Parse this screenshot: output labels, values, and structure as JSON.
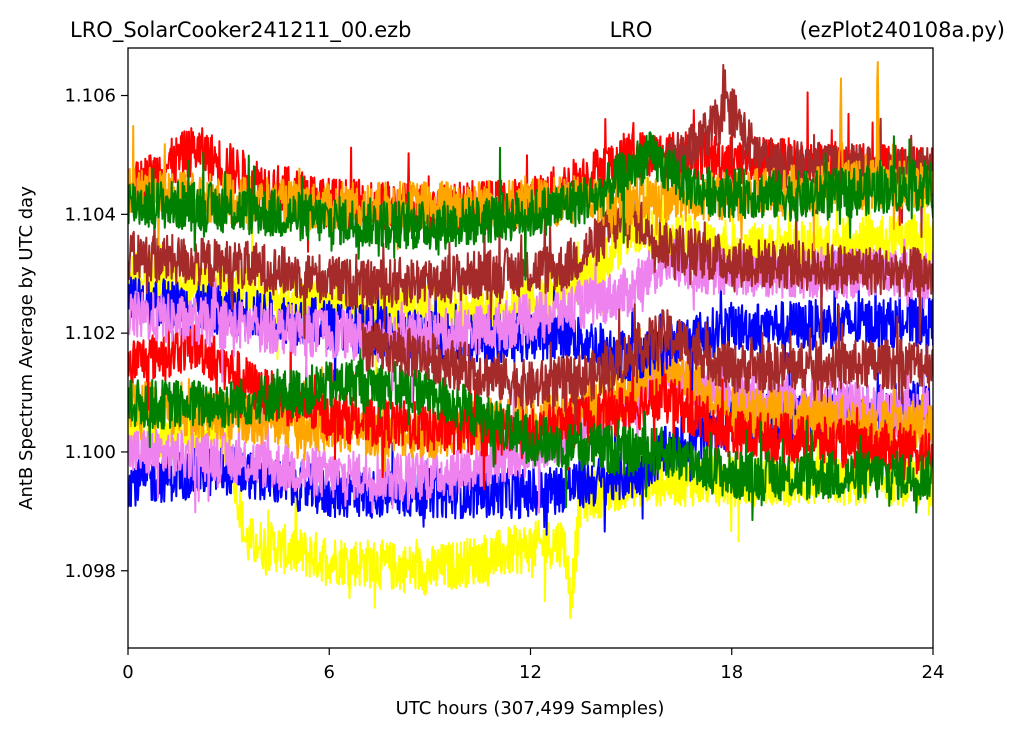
{
  "header": {
    "left": "LRO_SolarCooker241211_00.ezb",
    "center": "LRO",
    "right": "(ezPlot240108a.py)"
  },
  "chart_data": {
    "type": "line",
    "xlabel": "UTC hours  (307,499 Samples)",
    "ylabel": "AntB Spectrum Average by UTC day",
    "xlim": [
      0,
      24
    ],
    "ylim": [
      1.0967,
      1.1068
    ],
    "x_ticks": [
      {
        "value": 0,
        "label": "0"
      },
      {
        "value": 6,
        "label": "6"
      },
      {
        "value": 12,
        "label": "12"
      },
      {
        "value": 18,
        "label": "18"
      },
      {
        "value": 24,
        "label": "24"
      }
    ],
    "y_ticks": [
      {
        "value": 1.098,
        "label": "1.098"
      },
      {
        "value": 1.1,
        "label": "1.100"
      },
      {
        "value": 1.102,
        "label": "1.102"
      },
      {
        "value": 1.104,
        "label": "1.104"
      },
      {
        "value": 1.106,
        "label": "1.106"
      }
    ],
    "grid": false,
    "series": [
      {
        "color": "#ffff00",
        "x": [
          0,
          3,
          3.5,
          6,
          9,
          12,
          13,
          13.2,
          13.5,
          15,
          18,
          24
        ],
        "y": [
          1.1004,
          1.1002,
          1.0985,
          1.0982,
          1.098,
          1.0984,
          1.0985,
          1.0975,
          1.0992,
          1.0995,
          1.0995,
          1.0995
        ]
      },
      {
        "color": "#0000ff",
        "x": [
          0,
          3,
          6,
          9,
          12,
          15,
          16,
          18,
          24
        ],
        "y": [
          1.0995,
          1.0997,
          1.0993,
          1.0993,
          1.0993,
          1.0996,
          1.1,
          1.1005,
          1.1008
        ]
      },
      {
        "color": "#ee82ee",
        "x": [
          0,
          3,
          6,
          9,
          12,
          15,
          16,
          18,
          24
        ],
        "y": [
          1.1,
          1.0999,
          1.0996,
          1.0996,
          1.1,
          1.1008,
          1.1013,
          1.101,
          1.1006
        ]
      },
      {
        "color": "#ffa500",
        "x": [
          0,
          3,
          6,
          9,
          12,
          15,
          16,
          18,
          24
        ],
        "y": [
          1.1008,
          1.1006,
          1.1004,
          1.1003,
          1.1006,
          1.101,
          1.1015,
          1.1007,
          1.1004
        ]
      },
      {
        "color": "#ff0000",
        "x": [
          0,
          2,
          4,
          6,
          9,
          12,
          16,
          18,
          24
        ],
        "y": [
          1.1015,
          1.1018,
          1.101,
          1.1006,
          1.1004,
          1.1003,
          1.1009,
          1.1003,
          1.1
        ]
      },
      {
        "color": "#008000",
        "x": [
          0,
          3,
          7,
          9,
          12,
          15,
          16,
          18,
          24
        ],
        "y": [
          1.1008,
          1.1008,
          1.1012,
          1.101,
          1.1002,
          1.1,
          1.1,
          1.0996,
          1.0996
        ]
      },
      {
        "color": "#ffff00",
        "x": [
          0,
          3,
          6,
          9,
          12,
          14,
          15,
          18,
          24
        ],
        "y": [
          1.103,
          1.1028,
          1.1025,
          1.1024,
          1.1025,
          1.103,
          1.1038,
          1.1034,
          1.1036
        ]
      },
      {
        "color": "#0000ff",
        "x": [
          0,
          4,
          8,
          11,
          13,
          15,
          16,
          18,
          24
        ],
        "y": [
          1.1026,
          1.1023,
          1.102,
          1.1019,
          1.102,
          1.1016,
          1.1018,
          1.1021,
          1.1022
        ]
      },
      {
        "color": "#ee82ee",
        "x": [
          0,
          4,
          8,
          11,
          13,
          15,
          16,
          18,
          24
        ],
        "y": [
          1.1023,
          1.1021,
          1.1019,
          1.1021,
          1.1024,
          1.1027,
          1.1032,
          1.103,
          1.103
        ]
      },
      {
        "color": "#a52a2a",
        "x": [
          0,
          4,
          7,
          11,
          13,
          15,
          16,
          18,
          24
        ],
        "y": [
          1.1033,
          1.1031,
          1.1028,
          1.103,
          1.1031,
          1.104,
          1.1035,
          1.1032,
          1.103
        ]
      },
      {
        "color": "#a52a2a",
        "x": [
          7,
          9,
          12,
          14,
          16,
          18,
          24
        ],
        "y": [
          1.1018,
          1.1016,
          1.1011,
          1.1013,
          1.102,
          1.1014,
          1.1015
        ]
      },
      {
        "color": "#ff0000",
        "x": [
          0,
          2,
          4,
          6,
          9,
          12,
          15,
          16,
          24
        ],
        "y": [
          1.1044,
          1.1051,
          1.1045,
          1.1042,
          1.1041,
          1.1042,
          1.105,
          1.105,
          1.1047
        ]
      },
      {
        "color": "#a52a2a",
        "x": [
          16,
          17,
          18,
          18.5,
          19,
          20,
          24
        ],
        "y": [
          1.1048,
          1.1052,
          1.1058,
          1.1052,
          1.1049,
          1.1048,
          1.1047
        ]
      },
      {
        "color": "#ffa500",
        "x": [
          0,
          6,
          12,
          18,
          21.2,
          21.25,
          21.3,
          22.3,
          22.35,
          22.4,
          24
        ],
        "y": [
          1.1044,
          1.1041,
          1.1042,
          1.1043,
          1.1045,
          1.1063,
          1.1045,
          1.1045,
          1.1063,
          1.1045,
          1.1045
        ]
      },
      {
        "color": "#008000",
        "x": [
          0,
          3,
          6,
          9,
          12,
          14,
          15.5,
          17,
          20,
          24
        ],
        "y": [
          1.1042,
          1.1041,
          1.1039,
          1.1038,
          1.104,
          1.1043,
          1.105,
          1.1044,
          1.1043,
          1.1045
        ]
      }
    ]
  }
}
